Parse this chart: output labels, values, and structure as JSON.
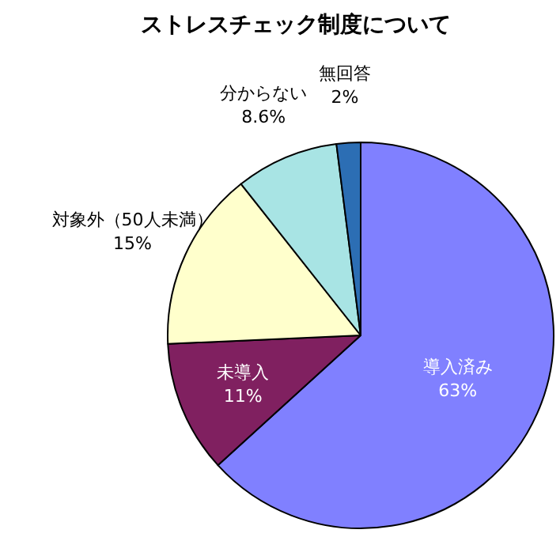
{
  "chart_data": {
    "type": "pie",
    "title": "ストレスチェック制度について",
    "categories": [
      "導入済み",
      "未導入",
      "対象外（50人未満）",
      "分からない",
      "無回答"
    ],
    "values": [
      63,
      11,
      15,
      8.6,
      2
    ],
    "value_labels": [
      "63%",
      "11%",
      "15%",
      "8.6%",
      "2%"
    ],
    "colors": [
      "#8080ff",
      "#802060",
      "#ffffcc",
      "#a8e4e4",
      "#2c6eb4"
    ]
  }
}
